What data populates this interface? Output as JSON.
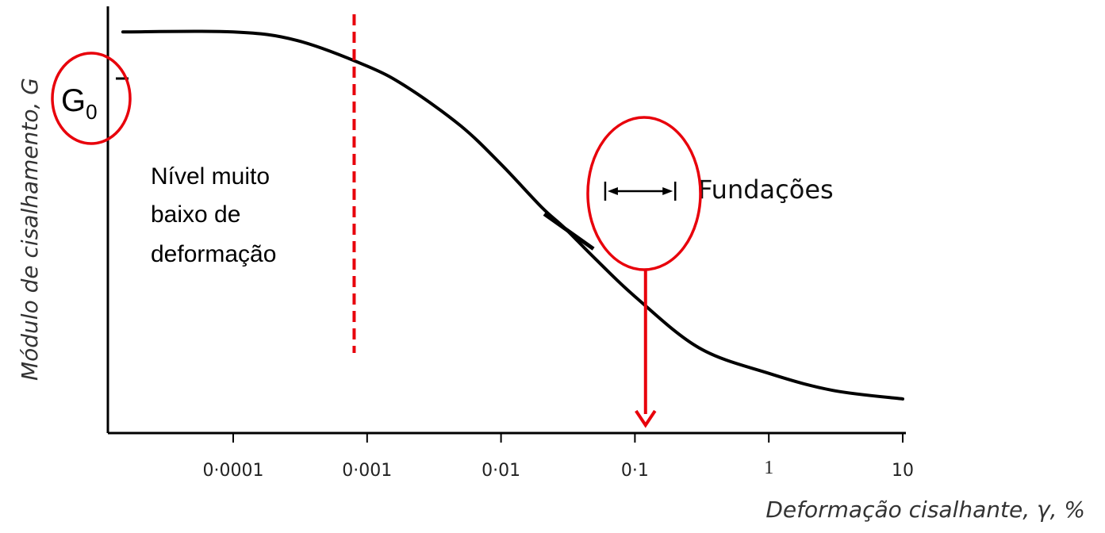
{
  "chart_data": {
    "type": "line",
    "x_scale": "log",
    "x_ticks": [
      {
        "value": 0.0001,
        "label": "0·0001"
      },
      {
        "value": 0.001,
        "label": "0·001"
      },
      {
        "value": 0.01,
        "label": "0·01"
      },
      {
        "value": 0.1,
        "label": "0·1"
      },
      {
        "value": 1,
        "label": "1"
      },
      {
        "value": 10,
        "label": "10"
      }
    ],
    "xlim": [
      1e-05,
      10
    ],
    "ylim": [
      0,
      1
    ],
    "xlabel": "Deformação cisalhante, γ,  %",
    "ylabel": "Módulo de cisalhamento, G",
    "series": [
      {
        "x": [
          1.5e-05,
          0.0001,
          0.0003,
          0.001,
          0.002,
          0.005,
          0.01,
          0.02,
          0.03,
          0.05,
          0.1,
          0.3,
          1,
          3,
          10
        ],
        "y": [
          0.94,
          0.94,
          0.92,
          0.86,
          0.81,
          0.72,
          0.63,
          0.53,
          0.48,
          0.41,
          0.32,
          0.2,
          0.14,
          0.1,
          0.08
        ]
      }
    ],
    "annotations": {
      "g0_label": "G",
      "g0_subscript": "0",
      "very_low_strain_text": [
        "Nível muito",
        "baixo de",
        "deformação"
      ],
      "very_low_strain_line_x": 0.0008,
      "foundations_label": "Fundações",
      "foundations_range": [
        0.06,
        0.2
      ],
      "foundations_arrow_x": 0.12
    },
    "colors": {
      "curve": "#000000",
      "axes": "#000000",
      "highlight": "#e8000b"
    }
  }
}
